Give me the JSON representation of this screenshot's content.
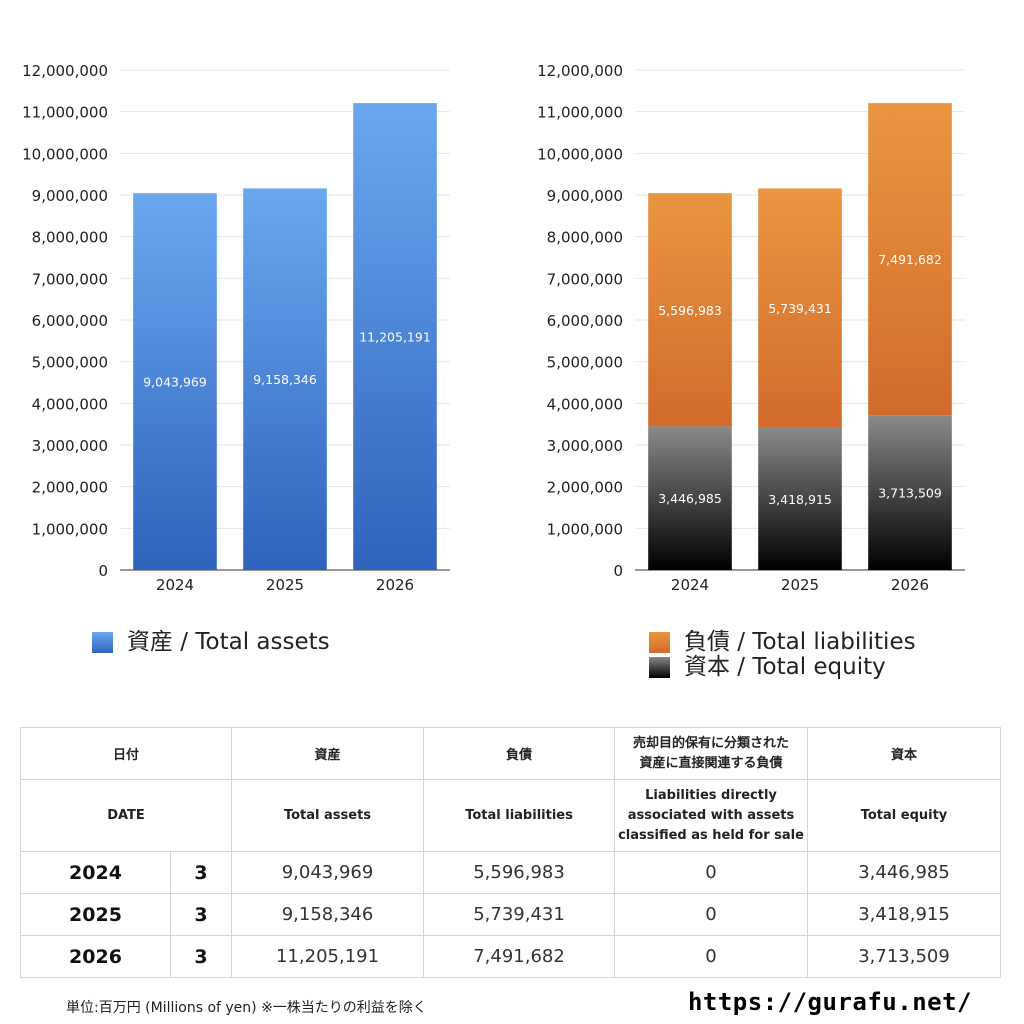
{
  "chart_data": [
    {
      "type": "bar",
      "categories": [
        "2024",
        "2025",
        "2026"
      ],
      "series": [
        {
          "name": "資産 / Total assets",
          "values": [
            9043969,
            9158346,
            11205191
          ],
          "color": "#4a86dc"
        }
      ],
      "data_labels": [
        "9,043,969",
        "9,158,346",
        "11,205,191"
      ],
      "yticks": [
        "0",
        "1,000,000",
        "2,000,000",
        "3,000,000",
        "4,000,000",
        "5,000,000",
        "6,000,000",
        "7,000,000",
        "8,000,000",
        "9,000,000",
        "10,000,000",
        "11,000,000",
        "12,000,000"
      ],
      "ylim": [
        0,
        12000000
      ],
      "grid": true,
      "legend": "bottom-left"
    },
    {
      "type": "bar",
      "stacked": true,
      "categories": [
        "2024",
        "2025",
        "2026"
      ],
      "series": [
        {
          "name": "資本 / Total equity",
          "values": [
            3446985,
            3418915,
            3713509
          ],
          "color": "#000000",
          "labels": [
            "3,446,985",
            "3,418,915",
            "3,713,509"
          ]
        },
        {
          "name": "負債 / Total liabilities",
          "values": [
            5596983,
            5739431,
            7491682
          ],
          "color": "#e08a38",
          "labels": [
            "5,596,983",
            "5,739,431",
            "7,491,682"
          ]
        }
      ],
      "yticks": [
        "0",
        "1,000,000",
        "2,000,000",
        "3,000,000",
        "4,000,000",
        "5,000,000",
        "6,000,000",
        "7,000,000",
        "8,000,000",
        "9,000,000",
        "10,000,000",
        "11,000,000",
        "12,000,000"
      ],
      "ylim": [
        0,
        12000000
      ],
      "grid": true,
      "legend": "bottom-left"
    }
  ],
  "legend_left": [
    {
      "label": "資産 / Total assets",
      "color": "#4a86dc"
    }
  ],
  "legend_right": [
    {
      "label": "負債 / Total liabilities",
      "color": "#e08a38"
    },
    {
      "label": "資本 / Total equity",
      "color": "#000000"
    }
  ],
  "table": {
    "header_jp": {
      "date": "日付",
      "assets": "資産",
      "liabilities": "負債",
      "held_for_sale_l1": "売却目的保有に分類された",
      "held_for_sale_l2": "資産に直接関連する負債",
      "equity": "資本"
    },
    "header_en": {
      "date": "DATE",
      "assets": "Total assets",
      "liabilities": "Total liabilities",
      "held_for_sale_l1": "Liabilities directly",
      "held_for_sale_l2": "associated with assets",
      "held_for_sale_l3": "classified as held for sale",
      "equity": "Total equity"
    },
    "rows": [
      {
        "year": "2024",
        "month": "3",
        "assets": "9,043,969",
        "liabilities": "5,596,983",
        "held_for_sale": "0",
        "equity": "3,446,985"
      },
      {
        "year": "2025",
        "month": "3",
        "assets": "9,158,346",
        "liabilities": "5,739,431",
        "held_for_sale": "0",
        "equity": "3,418,915"
      },
      {
        "year": "2026",
        "month": "3",
        "assets": "11,205,191",
        "liabilities": "7,491,682",
        "held_for_sale": "0",
        "equity": "3,713,509"
      }
    ]
  },
  "footnote": "単位:百万円 (Millions of yen) ※一株当たりの利益を除く",
  "site": "https://gurafu.net/"
}
